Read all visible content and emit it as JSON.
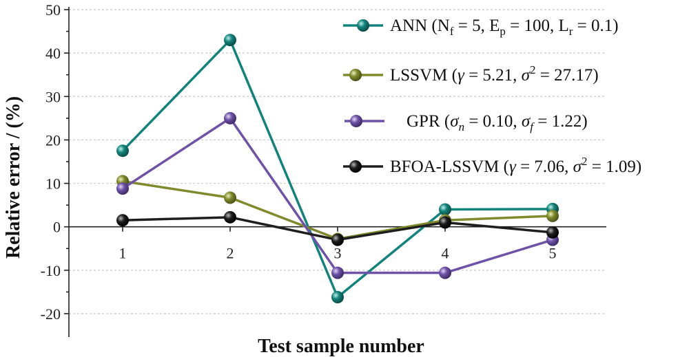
{
  "chart_data": {
    "type": "line",
    "xlabel": "Test sample number",
    "ylabel": "Relative error / (%)",
    "ylim": [
      -20,
      50
    ],
    "yticks": [
      -20,
      -10,
      0,
      10,
      20,
      30,
      40,
      50
    ],
    "x": [
      1,
      2,
      3,
      4,
      5
    ],
    "grid": true,
    "legend_position": "top-right",
    "series": [
      {
        "name": "ANN (N_f = 5, E_p = 100, L_r = 0.1)",
        "color": "#12837b",
        "values": [
          17.5,
          43.0,
          -16.2,
          4.0,
          4.1
        ]
      },
      {
        "name": "LSSVM (γ = 5.21, σ^2 = 27.17)",
        "color": "#808a2c",
        "values": [
          10.5,
          6.7,
          -2.8,
          1.5,
          2.5
        ]
      },
      {
        "name": "GPR (σ_n = 0.10, σ_f = 1.22)",
        "color": "#6e52a8",
        "values": [
          8.8,
          25.0,
          -10.6,
          -10.6,
          -3.0
        ]
      },
      {
        "name": "BFOA-LSSVM (γ = 7.06, σ^2 = 1.09)",
        "color": "#1e1e1e",
        "values": [
          1.5,
          2.2,
          -3.0,
          1.0,
          -1.3
        ]
      }
    ],
    "legend": {
      "ann": {
        "name": "ANN",
        "open": " (N",
        "nf_sub": "f",
        "a": " = 5, E",
        "ep_sub": "p",
        "b": " = 100, L",
        "lr_sub": "r",
        "c": " = 0.1)"
      },
      "lssvm": {
        "name": "LSSVM",
        "open": " (",
        "gamma": "γ",
        "a": " = 5.21, ",
        "sigma": "σ",
        "sq": "2",
        "c": " = 27.17)"
      },
      "gpr": {
        "name": "GPR",
        "open": " (",
        "sigma_n": "σ",
        "n_sub": "n",
        "a": " = 0.10, ",
        "sigma_f": "σ",
        "f_sub": "f",
        "c": " = 1.22)"
      },
      "bfoa": {
        "name": "BFOA-LSSVM",
        "open": "  (",
        "gamma": "γ",
        "a": " = 7.06, ",
        "sigma": "σ",
        "sq": "2",
        "c": " = 1.09)"
      }
    }
  }
}
